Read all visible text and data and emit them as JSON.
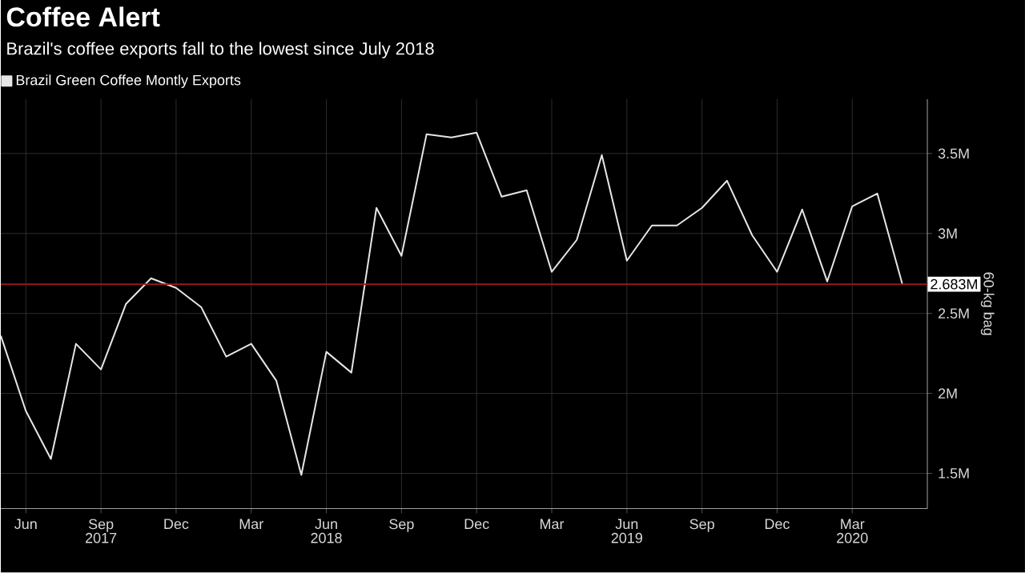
{
  "chart_data": {
    "type": "line",
    "title": "Coffee Alert",
    "subtitle": "Brazil's coffee exports fall to the lowest since July 2018",
    "y2label": "60-kg bag",
    "x": [
      "2017-05",
      "2017-06",
      "2017-07",
      "2017-08",
      "2017-09",
      "2017-10",
      "2017-11",
      "2017-12",
      "2018-01",
      "2018-02",
      "2018-03",
      "2018-04",
      "2018-05",
      "2018-06",
      "2018-07",
      "2018-08",
      "2018-09",
      "2018-10",
      "2018-11",
      "2018-12",
      "2019-01",
      "2019-02",
      "2019-03",
      "2019-04",
      "2019-05",
      "2019-06",
      "2019-07",
      "2019-08",
      "2019-09",
      "2019-10",
      "2019-11",
      "2019-12",
      "2020-01",
      "2020-02",
      "2020-03",
      "2020-04",
      "2020-05"
    ],
    "series": [
      {
        "name": "Brazil Green Coffee Montly Exports",
        "color": "#e6e6e6",
        "values": [
          2.36,
          1.89,
          1.59,
          2.31,
          2.15,
          2.56,
          2.72,
          2.66,
          2.54,
          2.23,
          2.31,
          2.08,
          1.49,
          2.26,
          2.13,
          3.16,
          2.86,
          3.62,
          3.6,
          3.63,
          3.23,
          3.27,
          2.76,
          2.96,
          3.49,
          2.83,
          3.05,
          3.05,
          3.16,
          3.33,
          2.99,
          2.76,
          3.15,
          2.7,
          3.17,
          3.25,
          2.683
        ]
      }
    ],
    "xlim": [
      "2017-05",
      "2020-06"
    ],
    "xticks": [
      {
        "value": "2017-06",
        "label": "Jun"
      },
      {
        "value": "2017-09",
        "label": "Sep"
      },
      {
        "value": "2017-12",
        "label": "Dec"
      },
      {
        "value": "2018-03",
        "label": "Mar"
      },
      {
        "value": "2018-06",
        "label": "Jun"
      },
      {
        "value": "2018-09",
        "label": "Sep"
      },
      {
        "value": "2018-12",
        "label": "Dec"
      },
      {
        "value": "2019-03",
        "label": "Mar"
      },
      {
        "value": "2019-06",
        "label": "Jun"
      },
      {
        "value": "2019-09",
        "label": "Sep"
      },
      {
        "value": "2019-12",
        "label": "Dec"
      },
      {
        "value": "2020-03",
        "label": "Mar"
      }
    ],
    "ylim": [
      1.28,
      3.84
    ],
    "yticks": [
      {
        "value": 1.5,
        "label": "1.5M"
      },
      {
        "value": 2,
        "label": "2M"
      },
      {
        "value": 2.5,
        "label": "2.5M"
      },
      {
        "value": 3,
        "label": "3M"
      },
      {
        "value": 3.5,
        "label": "3.5M"
      }
    ],
    "ref_lines": [
      {
        "axis": "y",
        "value": 2.683,
        "label": "2.683M",
        "color": "#a01818"
      }
    ],
    "annotations": [
      "2017",
      "2018",
      "2019",
      "2020"
    ],
    "grid": true,
    "legend": "top left",
    "marker": "none",
    "line_style": "solid"
  }
}
